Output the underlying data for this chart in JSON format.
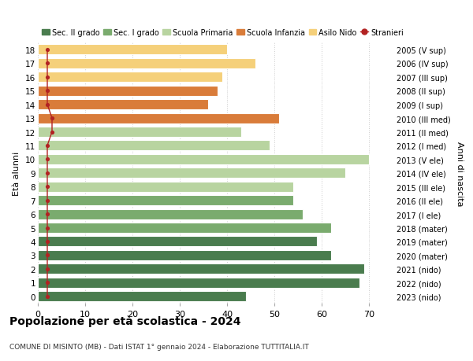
{
  "ages": [
    18,
    17,
    16,
    15,
    14,
    13,
    12,
    11,
    10,
    9,
    8,
    7,
    6,
    5,
    4,
    3,
    2,
    1,
    0
  ],
  "labels_left": [
    "18",
    "17",
    "16",
    "15",
    "14",
    "13",
    "12",
    "11",
    "10",
    "9",
    "8",
    "7",
    "6",
    "5",
    "4",
    "3",
    "2",
    "1",
    "0"
  ],
  "labels_right": [
    "2005 (V sup)",
    "2006 (IV sup)",
    "2007 (III sup)",
    "2008 (II sup)",
    "2009 (I sup)",
    "2010 (III med)",
    "2011 (II med)",
    "2012 (I med)",
    "2013 (V ele)",
    "2014 (IV ele)",
    "2015 (III ele)",
    "2016 (II ele)",
    "2017 (I ele)",
    "2018 (mater)",
    "2019 (mater)",
    "2020 (mater)",
    "2021 (nido)",
    "2022 (nido)",
    "2023 (nido)"
  ],
  "values": [
    44,
    68,
    69,
    62,
    59,
    62,
    56,
    54,
    54,
    65,
    70,
    49,
    43,
    51,
    36,
    38,
    39,
    46,
    40
  ],
  "bar_colors": [
    "#4a7c4e",
    "#4a7c4e",
    "#4a7c4e",
    "#4a7c4e",
    "#4a7c4e",
    "#7aab6e",
    "#7aab6e",
    "#7aab6e",
    "#b8d4a0",
    "#b8d4a0",
    "#b8d4a0",
    "#b8d4a0",
    "#b8d4a0",
    "#d97c3a",
    "#d97c3a",
    "#d97c3a",
    "#f5d07a",
    "#f5d07a",
    "#f5d07a"
  ],
  "stranieri_x": [
    2,
    2,
    2,
    2,
    2,
    2,
    2,
    2,
    2,
    2,
    2,
    2,
    3,
    3,
    2,
    2,
    2,
    2,
    2
  ],
  "legend_labels": [
    "Sec. II grado",
    "Sec. I grado",
    "Scuola Primaria",
    "Scuola Infanzia",
    "Asilo Nido",
    "Stranieri"
  ],
  "legend_colors": [
    "#4a7c4e",
    "#7aab6e",
    "#b8d4a0",
    "#d97c3a",
    "#f5d07a",
    "#b22222"
  ],
  "title": "Popolazione per età scolastica - 2024",
  "subtitle": "COMUNE DI MISINTO (MB) - Dati ISTAT 1° gennaio 2024 - Elaborazione TUTTITALIA.IT",
  "ylabel_left": "Età alunni",
  "ylabel_right": "Anni di nascita",
  "xlim": [
    0,
    75
  ],
  "background_color": "#ffffff",
  "grid_color": "#cccccc"
}
